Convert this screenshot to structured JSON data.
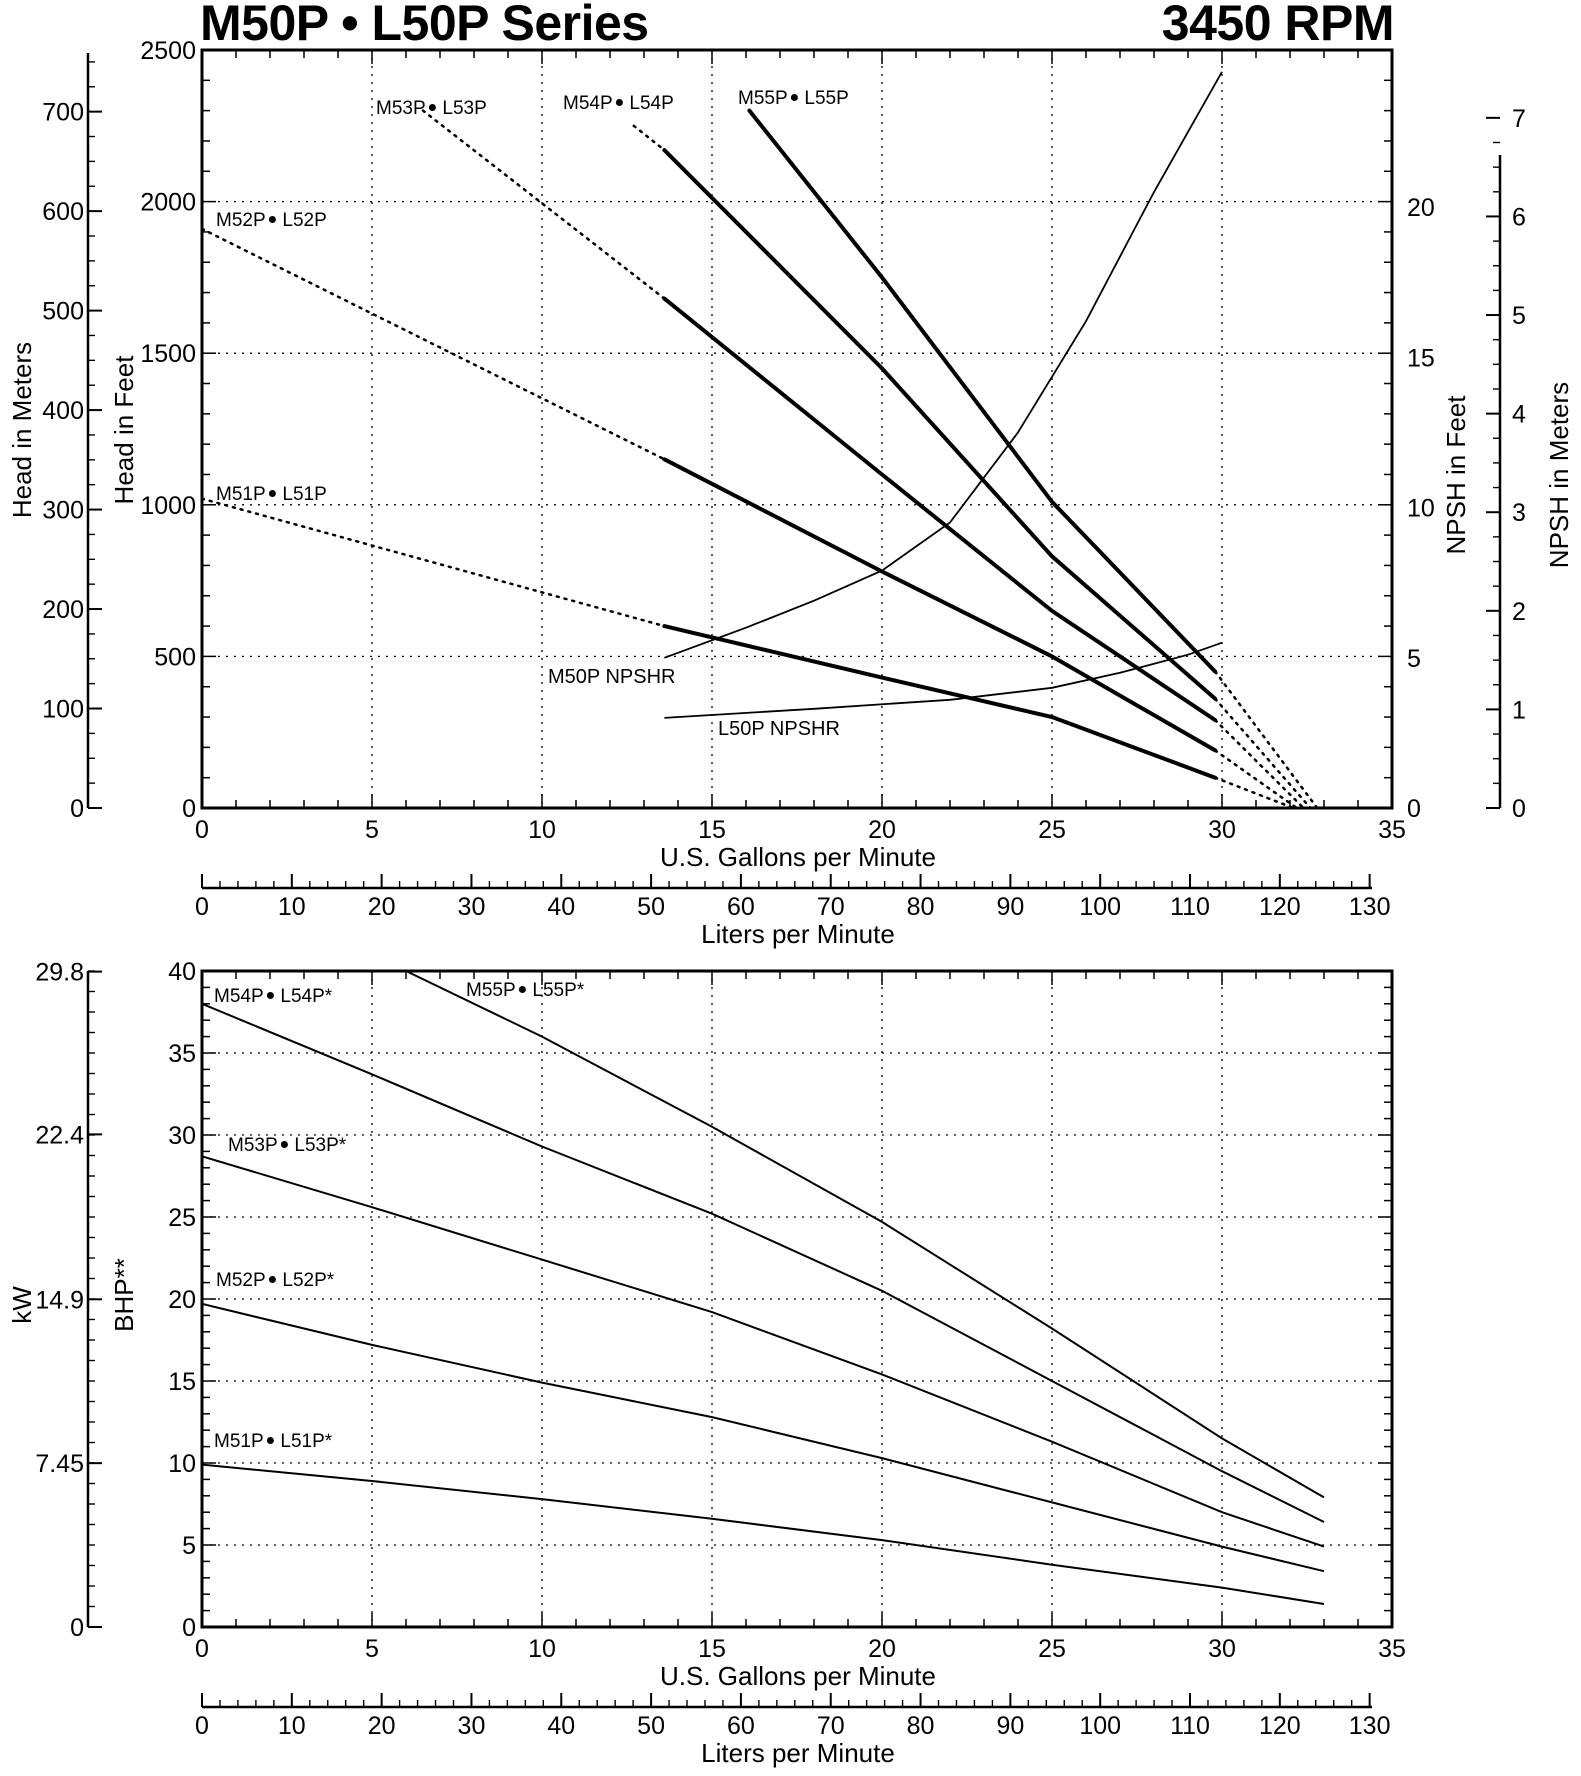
{
  "header": {
    "title": "M50P • L50P Series",
    "speed": "3450 RPM"
  },
  "chart_data": [
    {
      "type": "line",
      "id": "head-capacity",
      "xlabel": "U.S. Gallons per Minute",
      "xlim": [
        0,
        35
      ],
      "x_ticks": [
        "0",
        "5",
        "10",
        "15",
        "20",
        "25",
        "30",
        "35"
      ],
      "secondary_x_axis": {
        "label": "Liters per Minute",
        "ticks": [
          "0",
          "10",
          "20",
          "30",
          "40",
          "50",
          "60",
          "70",
          "80",
          "90",
          "100",
          "110",
          "120",
          "130"
        ]
      },
      "ylabel": "Head in Feet",
      "ylim": [
        0,
        2500
      ],
      "y_ticks": [
        "0",
        "500",
        "1000",
        "1500",
        "2000",
        "2500"
      ],
      "left_outer_axis": {
        "label": "Head in Meters",
        "ticks": [
          "0",
          "100",
          "200",
          "300",
          "400",
          "500",
          "600",
          "700"
        ]
      },
      "right_axis": {
        "label": "NPSH in Feet",
        "ticks": [
          "0",
          "5",
          "10",
          "15",
          "20"
        ]
      },
      "right_outer_axis": {
        "label": "NPSH in Meters",
        "ticks": [
          "0",
          "1",
          "2",
          "3",
          "4",
          "5",
          "6",
          "7"
        ]
      },
      "grid": true,
      "series": [
        {
          "name": "M51P • L51P",
          "kind": "head",
          "dotted_start": [
            [
              0,
              1020
            ],
            [
              13.6,
              600
            ]
          ],
          "solid": [
            [
              13.6,
              600
            ],
            [
              20,
              430
            ],
            [
              25,
              300
            ],
            [
              29.8,
              100
            ]
          ],
          "dotted_end": [
            [
              29.8,
              100
            ],
            [
              32.1,
              0
            ]
          ]
        },
        {
          "name": "M52P • L52P",
          "kind": "head",
          "dotted_start": [
            [
              0,
              1910
            ],
            [
              13.6,
              1150
            ]
          ],
          "solid": [
            [
              13.6,
              1150
            ],
            [
              20,
              780
            ],
            [
              25,
              500
            ],
            [
              29.8,
              190
            ]
          ],
          "dotted_end": [
            [
              29.8,
              190
            ],
            [
              32.2,
              0
            ]
          ]
        },
        {
          "name": "M53P • L53P",
          "kind": "head",
          "dotted_start": [
            [
              6.5,
              2300
            ],
            [
              13.6,
              1680
            ]
          ],
          "solid": [
            [
              13.6,
              1680
            ],
            [
              20,
              1100
            ],
            [
              25,
              650
            ],
            [
              29.8,
              290
            ]
          ],
          "dotted_end": [
            [
              29.8,
              290
            ],
            [
              32.4,
              0
            ]
          ]
        },
        {
          "name": "M54P • L54P",
          "kind": "head",
          "dotted_start": [
            [
              12.7,
              2250
            ],
            [
              13.6,
              2170
            ]
          ],
          "solid": [
            [
              13.6,
              2170
            ],
            [
              20,
              1450
            ],
            [
              25,
              830
            ],
            [
              29.8,
              360
            ]
          ],
          "dotted_end": [
            [
              29.8,
              360
            ],
            [
              32.6,
              0
            ]
          ]
        },
        {
          "name": "M55P • L55P",
          "kind": "head",
          "dotted_start": [],
          "solid": [
            [
              16.1,
              2300
            ],
            [
              20,
              1750
            ],
            [
              25,
              1010
            ],
            [
              29.8,
              450
            ]
          ],
          "dotted_end": [
            [
              29.8,
              450
            ],
            [
              32.8,
              0
            ]
          ]
        },
        {
          "name": "M50P NPSHR",
          "kind": "npsh",
          "solid": [
            [
              13.6,
              5.0
            ],
            [
              16,
              6.0
            ],
            [
              18,
              6.9
            ],
            [
              20,
              7.9
            ],
            [
              22,
              9.5
            ],
            [
              24,
              12.5
            ],
            [
              26,
              16.2
            ],
            [
              28,
              20.5
            ],
            [
              30,
              24.5
            ]
          ]
        },
        {
          "name": "L50P NPSHR",
          "kind": "npsh",
          "solid": [
            [
              13.6,
              3.0
            ],
            [
              18,
              3.3
            ],
            [
              22,
              3.6
            ],
            [
              25,
              4.0
            ],
            [
              27,
              4.5
            ],
            [
              29,
              5.1
            ],
            [
              30,
              5.5
            ]
          ]
        }
      ],
      "labels": [
        {
          "text": "M51P",
          "dot": true,
          "text2": "L51P"
        },
        {
          "text": "M52P",
          "dot": true,
          "text2": "L52P"
        },
        {
          "text": "M53P",
          "dot": true,
          "text2": "L53P"
        },
        {
          "text": "M54P",
          "dot": true,
          "text2": "L54P"
        },
        {
          "text": "M55P",
          "dot": true,
          "text2": "L55P"
        },
        {
          "text": "M50P NPSHR"
        },
        {
          "text": "L50P NPSHR"
        }
      ]
    },
    {
      "type": "line",
      "id": "brake-horsepower",
      "xlabel": "U.S. Gallons per Minute",
      "xlim": [
        0,
        35
      ],
      "x_ticks": [
        "0",
        "5",
        "10",
        "15",
        "20",
        "25",
        "30",
        "35"
      ],
      "secondary_x_axis": {
        "label": "Liters per Minute",
        "ticks": [
          "0",
          "10",
          "20",
          "30",
          "40",
          "50",
          "60",
          "70",
          "80",
          "90",
          "100",
          "110",
          "120",
          "130"
        ]
      },
      "ylabel": "BHP**",
      "ylim": [
        0,
        40
      ],
      "y_ticks": [
        "0",
        "5",
        "10",
        "15",
        "20",
        "25",
        "30",
        "35",
        "40"
      ],
      "left_outer_axis": {
        "label": "kW",
        "ticks": [
          "0",
          "7.45",
          "14.9",
          "22.4",
          "29.8"
        ]
      },
      "grid": true,
      "series": [
        {
          "name": "M51P • L51P*",
          "points": [
            [
              0,
              9.9
            ],
            [
              5,
              8.9
            ],
            [
              10,
              7.8
            ],
            [
              15,
              6.6
            ],
            [
              20,
              5.3
            ],
            [
              25,
              3.8
            ],
            [
              30,
              2.4
            ],
            [
              33,
              1.4
            ]
          ]
        },
        {
          "name": "M52P • L52P*",
          "points": [
            [
              0,
              19.7
            ],
            [
              5,
              17.2
            ],
            [
              10,
              14.9
            ],
            [
              15,
              12.8
            ],
            [
              20,
              10.3
            ],
            [
              25,
              7.6
            ],
            [
              30,
              4.9
            ],
            [
              33,
              3.4
            ]
          ]
        },
        {
          "name": "M53P • L53P*",
          "points": [
            [
              0,
              28.7
            ],
            [
              5,
              25.6
            ],
            [
              10,
              22.4
            ],
            [
              15,
              19.2
            ],
            [
              20,
              15.4
            ],
            [
              25,
              11.3
            ],
            [
              30,
              7.0
            ],
            [
              33,
              4.9
            ]
          ]
        },
        {
          "name": "M54P • L54P*",
          "points": [
            [
              0,
              38.0
            ],
            [
              5,
              33.7
            ],
            [
              10,
              29.3
            ],
            [
              15,
              25.2
            ],
            [
              20,
              20.5
            ],
            [
              25,
              15.0
            ],
            [
              30,
              9.5
            ],
            [
              33,
              6.4
            ]
          ]
        },
        {
          "name": "M55P • L55P*",
          "points": [
            [
              6,
              40.0
            ],
            [
              10,
              36.0
            ],
            [
              15,
              30.5
            ],
            [
              20,
              24.7
            ],
            [
              25,
              18.2
            ],
            [
              30,
              11.5
            ],
            [
              33,
              7.9
            ]
          ]
        }
      ],
      "labels": [
        {
          "text": "M51P",
          "dot": true,
          "text2": "L51P*"
        },
        {
          "text": "M52P",
          "dot": true,
          "text2": "L52P*"
        },
        {
          "text": "M53P",
          "dot": true,
          "text2": "L53P*"
        },
        {
          "text": "M54P",
          "dot": true,
          "text2": "L54P*"
        },
        {
          "text": "M55P",
          "dot": true,
          "text2": "L55P*"
        }
      ]
    }
  ]
}
